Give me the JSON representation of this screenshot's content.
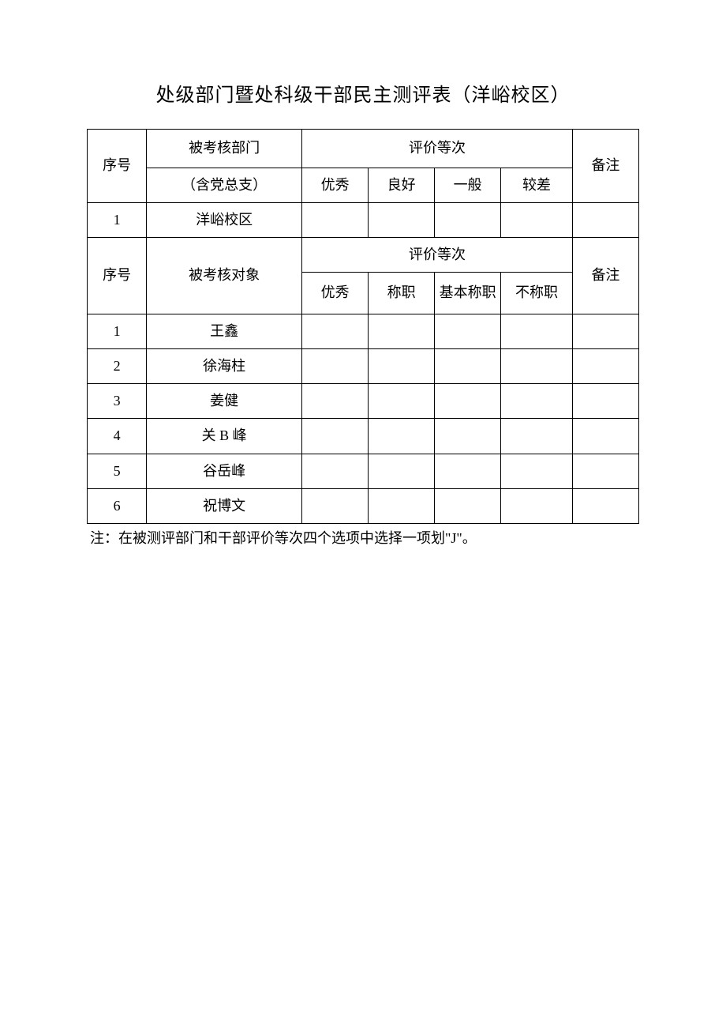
{
  "title": "处级部门暨处科级干部民主测评表（洋峪校区）",
  "section1": {
    "header_seq": "序号",
    "header_subject_line1": "被考核部门",
    "header_subject_line2": "（含党总支）",
    "header_rating": "评价等次",
    "header_note": "备注",
    "ratings": [
      "优秀",
      "良好",
      "一般",
      "较差"
    ],
    "rows": [
      {
        "seq": "1",
        "name": "洋峪校区"
      }
    ]
  },
  "section2": {
    "header_seq": "序号",
    "header_subject": "被考核对象",
    "header_rating": "评价等次",
    "header_note": "备注",
    "ratings": [
      "优秀",
      "称职",
      "基本称职",
      "不称职"
    ],
    "rows": [
      {
        "seq": "1",
        "name": "王鑫"
      },
      {
        "seq": "2",
        "name": "徐海柱"
      },
      {
        "seq": "3",
        "name": "姜健"
      },
      {
        "seq": "4",
        "name": "关 B 峰"
      },
      {
        "seq": "5",
        "name": "谷岳峰"
      },
      {
        "seq": "6",
        "name": "祝博文"
      }
    ]
  },
  "footnote": "注：在被测评部门和干部评价等次四个选项中选择一项划\"J\"。",
  "styles": {
    "background_color": "#ffffff",
    "text_color": "#000000",
    "border_color": "#000000",
    "title_fontsize": 24,
    "body_fontsize": 18,
    "font_family": "SimSun"
  }
}
